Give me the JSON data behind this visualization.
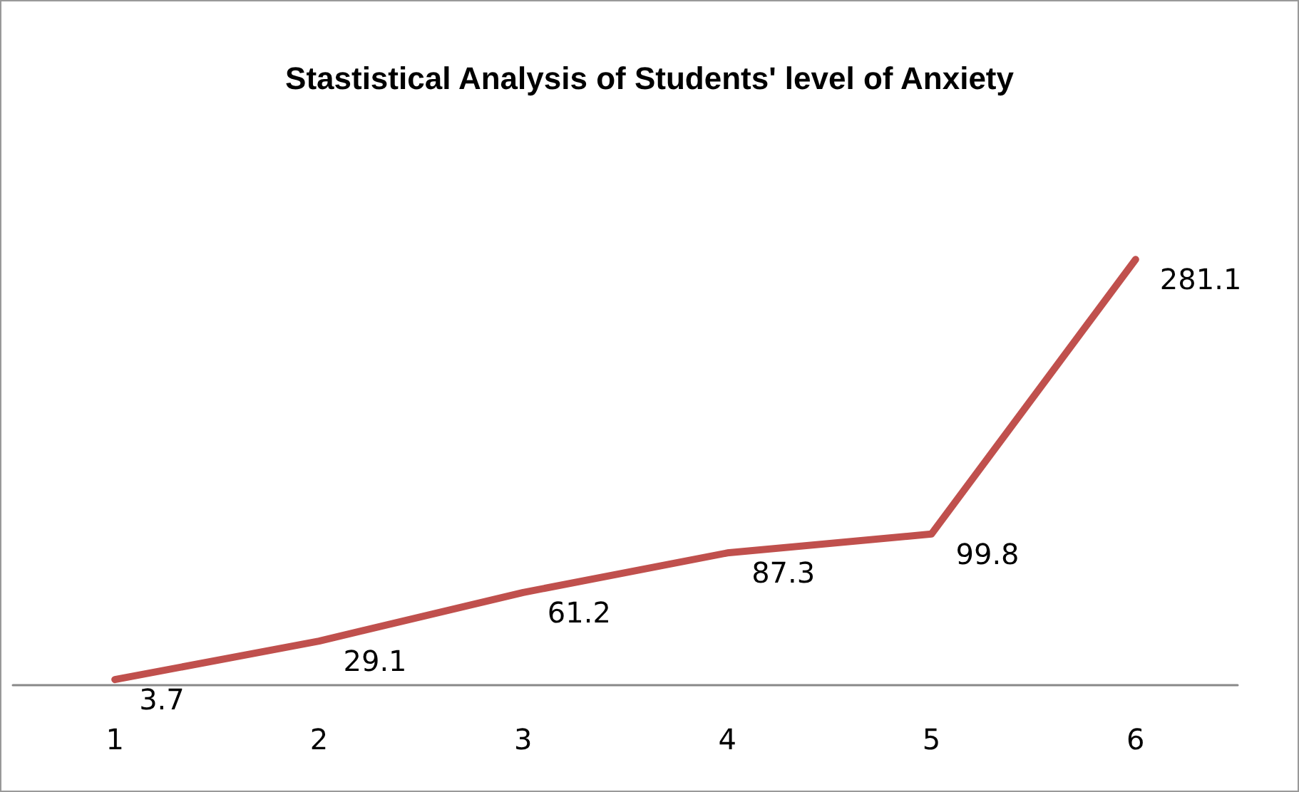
{
  "chart_data": {
    "type": "line",
    "title": "Stastistical Analysis of Students' level of Anxiety",
    "categories": [
      "1",
      "2",
      "3",
      "4",
      "5",
      "6"
    ],
    "series": [
      {
        "color": "#c0504d",
        "values": [
          3.7,
          29.1,
          61.2,
          87.3,
          99.8,
          281.1
        ]
      }
    ],
    "data_labels": true,
    "grid": false,
    "marker": "none",
    "line_style": "solid"
  }
}
